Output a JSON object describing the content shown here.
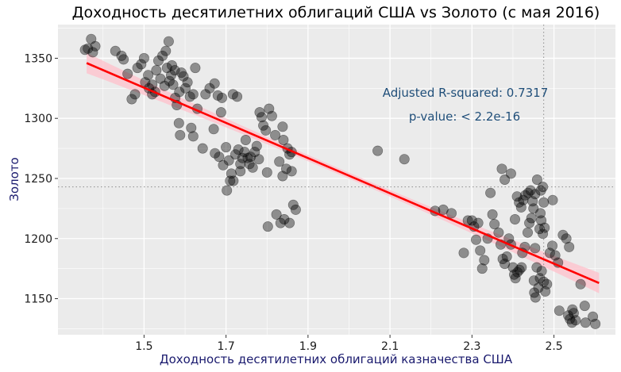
{
  "chart_data": {
    "type": "scatter",
    "title": "Доходность десятилетних облигаций США vs Золото (с мая 2016)",
    "xlabel": "Доходность десятилетних облигаций казначества США",
    "ylabel": "Золото",
    "xlim": [
      1.29,
      2.65
    ],
    "ylim": [
      1120,
      1378
    ],
    "x_ticks": [
      1.5,
      1.7,
      1.9,
      2.1,
      2.3,
      2.5
    ],
    "y_ticks": [
      1150,
      1200,
      1250,
      1300,
      1350
    ],
    "x_tick_labels": [
      "1.5",
      "1.7",
      "1.9",
      "2.1",
      "2.3",
      "2.5"
    ],
    "y_tick_labels": [
      "1150",
      "1200",
      "1250",
      "1300",
      "1350"
    ],
    "grid": true,
    "regression": {
      "x": [
        1.36,
        2.61
      ],
      "y": [
        1346,
        1163
      ],
      "color": "#ff0000",
      "band_color": "#ffc0cb"
    },
    "reference_lines": {
      "x": 2.475,
      "y": 1243
    },
    "annotations": [
      "Adjusted R-squared: 0.7317",
      "p-value: < 2.2e-16"
    ],
    "colors": {
      "panel": "#ebebeb",
      "grid": "#ffffff",
      "points": "#000000",
      "annotation": "#1f4e79",
      "axis_title": "#1a1a6e"
    },
    "points": [
      [
        1.356,
        1357
      ],
      [
        1.371,
        1366
      ],
      [
        1.381,
        1360
      ],
      [
        1.363,
        1358
      ],
      [
        1.375,
        1355
      ],
      [
        1.43,
        1356
      ],
      [
        1.445,
        1352
      ],
      [
        1.45,
        1349
      ],
      [
        1.46,
        1337
      ],
      [
        1.47,
        1316
      ],
      [
        1.478,
        1320
      ],
      [
        1.484,
        1342
      ],
      [
        1.5,
        1350
      ],
      [
        1.493,
        1345
      ],
      [
        1.51,
        1336
      ],
      [
        1.503,
        1330
      ],
      [
        1.512,
        1325
      ],
      [
        1.52,
        1328
      ],
      [
        1.527,
        1322
      ],
      [
        1.535,
        1348
      ],
      [
        1.545,
        1352
      ],
      [
        1.553,
        1356
      ],
      [
        1.56,
        1364
      ],
      [
        1.568,
        1344
      ],
      [
        1.575,
        1340
      ],
      [
        1.52,
        1320
      ],
      [
        1.53,
        1340
      ],
      [
        1.54,
        1333
      ],
      [
        1.55,
        1327
      ],
      [
        1.556,
        1342
      ],
      [
        1.562,
        1331
      ],
      [
        1.566,
        1336
      ],
      [
        1.571,
        1328
      ],
      [
        1.576,
        1317
      ],
      [
        1.58,
        1311
      ],
      [
        1.586,
        1322
      ],
      [
        1.591,
        1338
      ],
      [
        1.596,
        1335
      ],
      [
        1.601,
        1325
      ],
      [
        1.606,
        1330
      ],
      [
        1.612,
        1318
      ],
      [
        1.585,
        1296
      ],
      [
        1.588,
        1286
      ],
      [
        1.62,
        1320
      ],
      [
        1.625,
        1342
      ],
      [
        1.63,
        1308
      ],
      [
        1.615,
        1292
      ],
      [
        1.62,
        1285
      ],
      [
        1.643,
        1275
      ],
      [
        1.65,
        1320
      ],
      [
        1.66,
        1325
      ],
      [
        1.672,
        1329
      ],
      [
        1.68,
        1319
      ],
      [
        1.69,
        1317
      ],
      [
        1.688,
        1305
      ],
      [
        1.67,
        1291
      ],
      [
        1.717,
        1320
      ],
      [
        1.727,
        1318
      ],
      [
        1.673,
        1271
      ],
      [
        1.683,
        1268
      ],
      [
        1.693,
        1261
      ],
      [
        1.7,
        1276
      ],
      [
        1.707,
        1265
      ],
      [
        1.713,
        1254
      ],
      [
        1.718,
        1248
      ],
      [
        1.723,
        1270
      ],
      [
        1.73,
        1274
      ],
      [
        1.735,
        1262
      ],
      [
        1.74,
        1267
      ],
      [
        1.745,
        1272
      ],
      [
        1.748,
        1282
      ],
      [
        1.753,
        1267
      ],
      [
        1.757,
        1262
      ],
      [
        1.76,
        1268
      ],
      [
        1.765,
        1259
      ],
      [
        1.77,
        1272
      ],
      [
        1.775,
        1277
      ],
      [
        1.78,
        1266
      ],
      [
        1.782,
        1305
      ],
      [
        1.787,
        1301
      ],
      [
        1.791,
        1294
      ],
      [
        1.797,
        1290
      ],
      [
        1.805,
        1308
      ],
      [
        1.8,
        1255
      ],
      [
        1.812,
        1302
      ],
      [
        1.82,
        1286
      ],
      [
        1.83,
        1264
      ],
      [
        1.84,
        1282
      ],
      [
        1.85,
        1275
      ],
      [
        1.855,
        1270
      ],
      [
        1.86,
        1272
      ],
      [
        1.847,
        1258
      ],
      [
        1.838,
        1252
      ],
      [
        1.702,
        1240
      ],
      [
        1.71,
        1248
      ],
      [
        1.735,
        1256
      ],
      [
        1.802,
        1210
      ],
      [
        1.823,
        1220
      ],
      [
        1.833,
        1213
      ],
      [
        1.842,
        1216
      ],
      [
        1.855,
        1213
      ],
      [
        1.864,
        1228
      ],
      [
        1.87,
        1224
      ],
      [
        1.86,
        1256
      ],
      [
        1.838,
        1293
      ],
      [
        2.07,
        1273
      ],
      [
        2.135,
        1266
      ],
      [
        2.21,
        1223
      ],
      [
        2.23,
        1224
      ],
      [
        2.25,
        1221
      ],
      [
        2.28,
        1188
      ],
      [
        2.29,
        1215
      ],
      [
        2.3,
        1215
      ],
      [
        2.31,
        1199
      ],
      [
        2.305,
        1210
      ],
      [
        2.315,
        1213
      ],
      [
        2.32,
        1190
      ],
      [
        2.325,
        1175
      ],
      [
        2.33,
        1182
      ],
      [
        2.338,
        1200
      ],
      [
        2.345,
        1238
      ],
      [
        2.35,
        1220
      ],
      [
        2.355,
        1212
      ],
      [
        2.365,
        1205
      ],
      [
        2.37,
        1195
      ],
      [
        2.375,
        1183
      ],
      [
        2.38,
        1179
      ],
      [
        2.385,
        1185
      ],
      [
        2.39,
        1200
      ],
      [
        2.395,
        1195
      ],
      [
        2.4,
        1176
      ],
      [
        2.403,
        1170
      ],
      [
        2.406,
        1167
      ],
      [
        2.411,
        1172
      ],
      [
        2.416,
        1174
      ],
      [
        2.421,
        1176
      ],
      [
        2.373,
        1258
      ],
      [
        2.38,
        1249
      ],
      [
        2.395,
        1254
      ],
      [
        2.41,
        1235
      ],
      [
        2.415,
        1230
      ],
      [
        2.42,
        1226
      ],
      [
        2.425,
        1232
      ],
      [
        2.43,
        1236
      ],
      [
        2.437,
        1238
      ],
      [
        2.443,
        1240
      ],
      [
        2.448,
        1231
      ],
      [
        2.454,
        1237
      ],
      [
        2.459,
        1249
      ],
      [
        2.468,
        1240
      ],
      [
        2.473,
        1243
      ],
      [
        2.405,
        1216
      ],
      [
        2.423,
        1188
      ],
      [
        2.429,
        1193
      ],
      [
        2.436,
        1205
      ],
      [
        2.44,
        1213
      ],
      [
        2.445,
        1217
      ],
      [
        2.45,
        1225
      ],
      [
        2.454,
        1192
      ],
      [
        2.458,
        1176
      ],
      [
        2.462,
        1159
      ],
      [
        2.466,
        1167
      ],
      [
        2.47,
        1173
      ],
      [
        2.475,
        1164
      ],
      [
        2.479,
        1156
      ],
      [
        2.483,
        1162
      ],
      [
        2.473,
        1204
      ],
      [
        2.477,
        1209
      ],
      [
        2.469,
        1215
      ],
      [
        2.467,
        1221
      ],
      [
        2.475,
        1230
      ],
      [
        2.49,
        1188
      ],
      [
        2.496,
        1194
      ],
      [
        2.497,
        1232
      ],
      [
        2.503,
        1186
      ],
      [
        2.51,
        1180
      ],
      [
        2.522,
        1203
      ],
      [
        2.53,
        1200
      ],
      [
        2.537,
        1193
      ],
      [
        2.455,
        1151
      ],
      [
        2.452,
        1155
      ],
      [
        2.513,
        1140
      ],
      [
        2.535,
        1136
      ],
      [
        2.539,
        1133
      ],
      [
        2.544,
        1130
      ],
      [
        2.548,
        1138
      ],
      [
        2.553,
        1132
      ],
      [
        2.545,
        1141
      ],
      [
        2.565,
        1162
      ],
      [
        2.575,
        1144
      ],
      [
        2.577,
        1130
      ],
      [
        2.595,
        1135
      ],
      [
        2.601,
        1129
      ],
      [
        2.451,
        1165
      ],
      [
        2.465,
        1208
      ]
    ]
  }
}
